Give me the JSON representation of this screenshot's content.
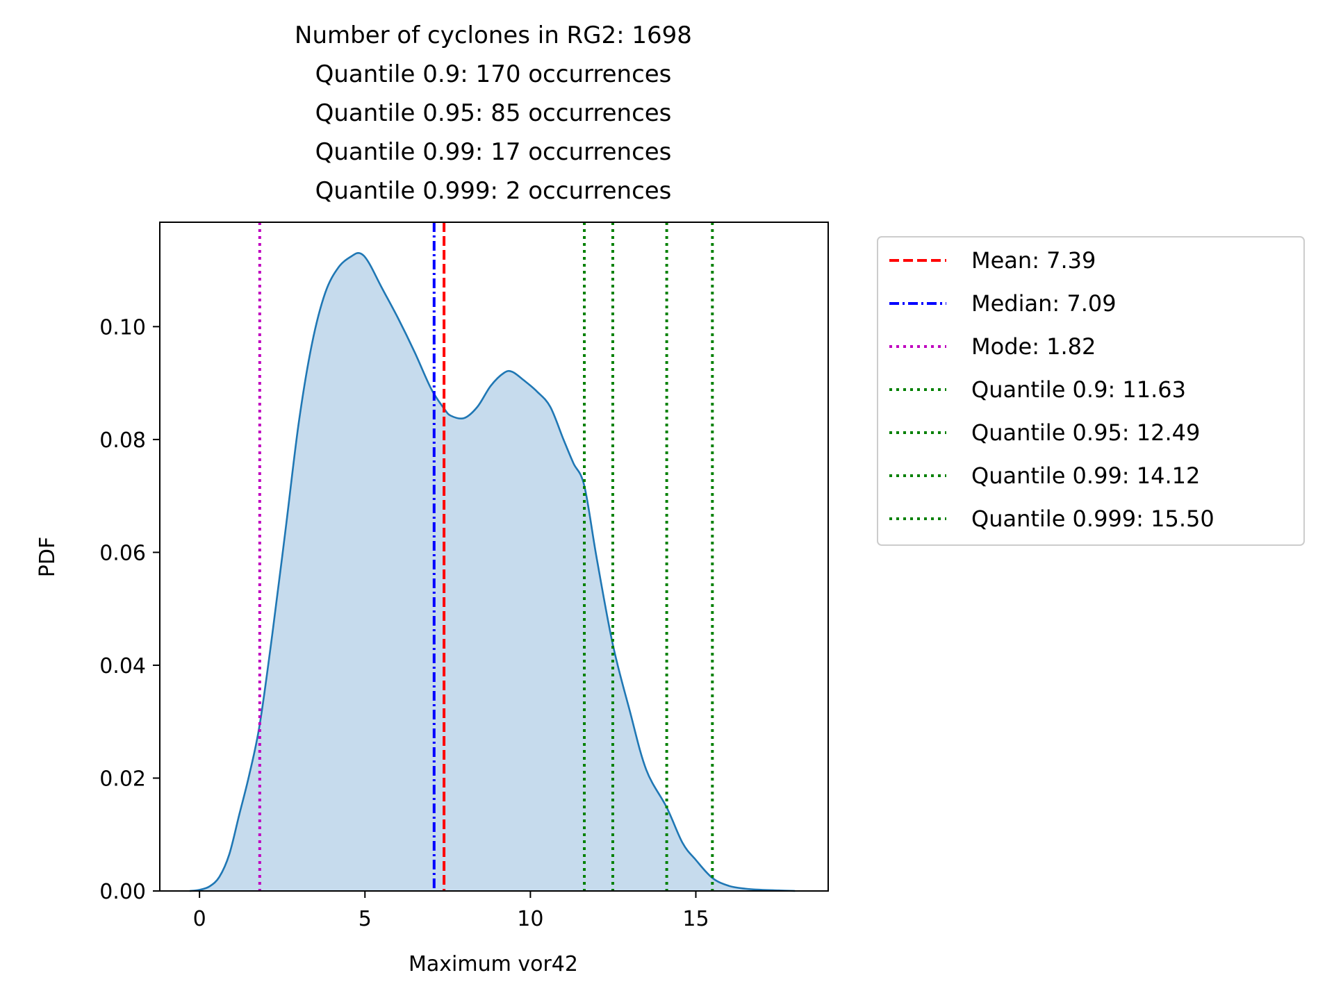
{
  "chart_data": {
    "type": "area",
    "title_lines": [
      "Number of cyclones in RG2: 1698",
      "Quantile 0.9: 170 occurrences",
      "Quantile 0.95: 85 occurrences",
      "Quantile 0.99: 17 occurrences",
      "Quantile 0.999: 2 occurrences"
    ],
    "xlabel": "Maximum vor42",
    "ylabel": "PDF",
    "xlim": [
      -1.2,
      19.0
    ],
    "ylim": [
      0.0,
      0.1185
    ],
    "xticks": [
      0,
      5,
      10,
      15
    ],
    "xtick_labels": [
      "0",
      "5",
      "10",
      "15"
    ],
    "yticks": [
      0.0,
      0.02,
      0.04,
      0.06,
      0.08,
      0.1
    ],
    "ytick_labels": [
      "0.00",
      "0.02",
      "0.04",
      "0.06",
      "0.08",
      "0.10"
    ],
    "grid": false,
    "legend_position": "outside right",
    "kde_color": "#1f77b4",
    "fill_color": "#c6dbed",
    "kde": {
      "x": [
        -0.3,
        0.0,
        0.3,
        0.6,
        0.9,
        1.2,
        1.5,
        1.82,
        2.2,
        2.6,
        3.0,
        3.4,
        3.8,
        4.2,
        4.6,
        4.85,
        5.1,
        5.5,
        6.0,
        6.5,
        7.0,
        7.39,
        7.6,
        8.0,
        8.4,
        8.8,
        9.2,
        9.45,
        9.8,
        10.2,
        10.6,
        11.0,
        11.3,
        11.63,
        12.0,
        12.49,
        13.0,
        13.5,
        14.12,
        14.6,
        15.0,
        15.5,
        16.0,
        16.5,
        17.0,
        17.5,
        18.0
      ],
      "y": [
        0.0,
        0.0002,
        0.0008,
        0.0025,
        0.0065,
        0.0135,
        0.0205,
        0.0295,
        0.0455,
        0.064,
        0.083,
        0.097,
        0.106,
        0.1105,
        0.1125,
        0.113,
        0.1115,
        0.107,
        0.1015,
        0.0955,
        0.089,
        0.0855,
        0.0842,
        0.0838,
        0.0858,
        0.0895,
        0.0918,
        0.092,
        0.0905,
        0.0885,
        0.0858,
        0.08,
        0.0758,
        0.0718,
        0.0591,
        0.0437,
        0.032,
        0.0215,
        0.0148,
        0.0085,
        0.0055,
        0.0023,
        0.0009,
        0.0004,
        0.0002,
        0.0001,
        0.0
      ]
    },
    "vlines": [
      {
        "label": "Mean: 7.39",
        "x": 7.39,
        "color": "#ff0000",
        "style": "dashed"
      },
      {
        "label": "Median: 7.09",
        "x": 7.09,
        "color": "#0000ff",
        "style": "dashdot"
      },
      {
        "label": "Mode: 1.82",
        "x": 1.82,
        "color": "#bf00bf",
        "style": "dotted"
      },
      {
        "label": "Quantile 0.9: 11.63",
        "x": 11.63,
        "color": "#008000",
        "style": "dotted"
      },
      {
        "label": "Quantile 0.95: 12.49",
        "x": 12.49,
        "color": "#008000",
        "style": "dotted"
      },
      {
        "label": "Quantile 0.99: 14.12",
        "x": 14.12,
        "color": "#008000",
        "style": "dotted"
      },
      {
        "label": "Quantile 0.999: 15.50",
        "x": 15.5,
        "color": "#008000",
        "style": "dotted"
      }
    ]
  }
}
